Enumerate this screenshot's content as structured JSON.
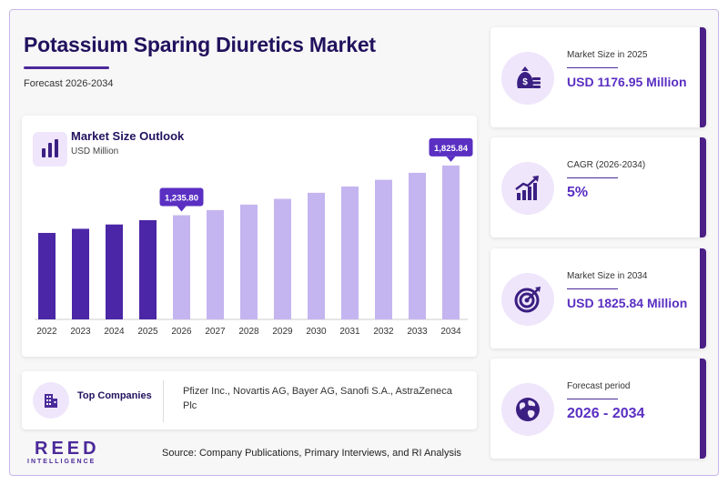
{
  "header": {
    "title": "Potassium Sparing Diuretics Market",
    "subtitle": "Forecast 2026-2034"
  },
  "chart_card": {
    "title": "Market Size Outlook",
    "unit": "USD Million"
  },
  "chart_data": {
    "type": "bar",
    "title": "Market Size Outlook",
    "ylabel": "USD Million",
    "categories": [
      "2022",
      "2023",
      "2024",
      "2025",
      "2026",
      "2027",
      "2028",
      "2029",
      "2030",
      "2031",
      "2032",
      "2033",
      "2034"
    ],
    "values": [
      1026,
      1075,
      1126,
      1176.95,
      1235.8,
      1297,
      1362,
      1430,
      1502,
      1577,
      1656,
      1739,
      1825.84
    ],
    "historical_count": 4,
    "labeled_points": [
      {
        "category": "2026",
        "label": "1,235.80"
      },
      {
        "category": "2034",
        "label": "1,825.84"
      }
    ],
    "colors": {
      "historical": "#4b26a6",
      "forecast": "#c4b5f0",
      "callout": "#5a2fc2"
    },
    "ylim": [
      0,
      1900
    ],
    "grid": false
  },
  "companies": {
    "label": "Top Companies",
    "list": "Pfizer Inc., Novartis AG, Bayer AG, Sanofi S.A., AstraZeneca Plc"
  },
  "logo": {
    "main": "REED",
    "sub": "INTELLIGENCE"
  },
  "source": "Source: Company Publications, Primary Interviews, and RI Analysis",
  "stats": [
    {
      "label": "Market Size in 2025",
      "value": "USD 1176.95 Million",
      "icon": "money-bag-icon"
    },
    {
      "label": "CAGR (2026-2034)",
      "value": "5%",
      "icon": "growth-chart-icon"
    },
    {
      "label": "Market Size in 2034",
      "value": "USD 1825.84 Million",
      "icon": "target-icon"
    },
    {
      "label": "Forecast period",
      "value": "2026 - 2034",
      "icon": "globe-icon"
    }
  ],
  "theme": {
    "accent": "#4b2a9a",
    "title_color": "#22125e",
    "value_color": "#5a2fc2"
  }
}
